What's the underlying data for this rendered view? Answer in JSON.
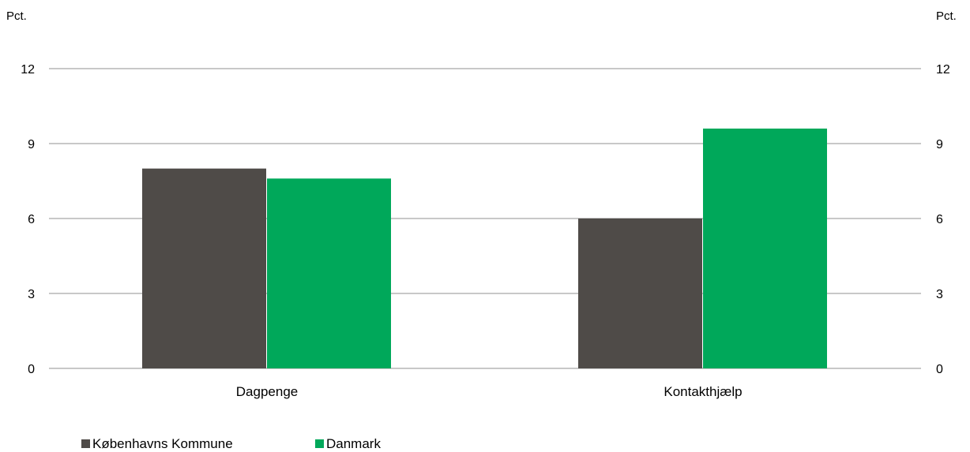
{
  "chart_data": {
    "type": "bar",
    "categories": [
      "Dagpenge",
      "Kontakthjælp"
    ],
    "series": [
      {
        "name": "Københavns Kommune",
        "values": [
          8.0,
          6.0
        ],
        "color": "#4f4b48"
      },
      {
        "name": "Danmark",
        "values": [
          7.6,
          9.6
        ],
        "color": "#00a85a"
      }
    ],
    "ylim": [
      0,
      12
    ],
    "yticks": [
      0,
      3,
      6,
      9,
      12
    ],
    "left_axis_unit": "Pct.",
    "right_axis_unit": "Pct.",
    "grid": true,
    "gridline_color": "#a6a6a6",
    "legend_position": "bottom-left"
  }
}
